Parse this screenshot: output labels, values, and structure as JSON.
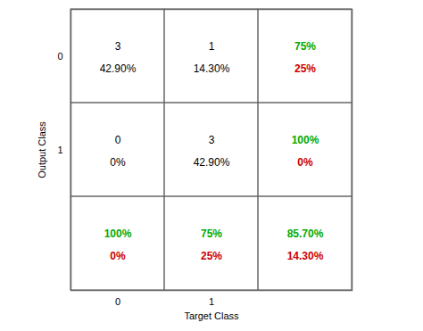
{
  "chart_data": {
    "type": "confusion_matrix",
    "xlabel": "Target Class",
    "ylabel": "Output Class",
    "x_categories": [
      "0",
      "1",
      null
    ],
    "y_categories": [
      "0",
      "1",
      null
    ],
    "grid": true,
    "cells": [
      [
        {
          "values": [
            3,
            42.9
          ],
          "value_labels": [
            "3",
            "42.90%"
          ],
          "colors": [
            "#000000",
            "#000000"
          ]
        },
        {
          "values": [
            1,
            14.3
          ],
          "value_labels": [
            "1",
            "14.30%"
          ],
          "colors": [
            "#000000",
            "#000000"
          ]
        },
        {
          "values": [
            75,
            25
          ],
          "value_labels": [
            "75%",
            "25%"
          ],
          "colors": [
            "#00aa00",
            "#cc0000"
          ]
        }
      ],
      [
        {
          "values": [
            0,
            0
          ],
          "value_labels": [
            "0",
            "0%"
          ],
          "colors": [
            "#000000",
            "#000000"
          ]
        },
        {
          "values": [
            3,
            42.9
          ],
          "value_labels": [
            "3",
            "42.90%"
          ],
          "colors": [
            "#000000",
            "#000000"
          ]
        },
        {
          "values": [
            100,
            0
          ],
          "value_labels": [
            "100%",
            "0%"
          ],
          "colors": [
            "#00aa00",
            "#cc0000"
          ]
        }
      ],
      [
        {
          "values": [
            100,
            0
          ],
          "value_labels": [
            "100%",
            "0%"
          ],
          "colors": [
            "#00aa00",
            "#cc0000"
          ]
        },
        {
          "values": [
            75,
            25
          ],
          "value_labels": [
            "75%",
            "25%"
          ],
          "colors": [
            "#00aa00",
            "#cc0000"
          ]
        },
        {
          "values": [
            85.7,
            14.3
          ],
          "value_labels": [
            "85.70%",
            "14.30%"
          ],
          "colors": [
            "#00aa00",
            "#cc0000"
          ]
        }
      ]
    ]
  }
}
